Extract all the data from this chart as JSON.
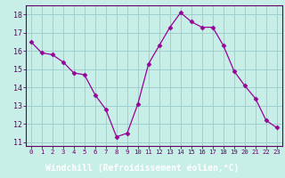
{
  "x": [
    0,
    1,
    2,
    3,
    4,
    5,
    6,
    7,
    8,
    9,
    10,
    11,
    12,
    13,
    14,
    15,
    16,
    17,
    18,
    19,
    20,
    21,
    22,
    23
  ],
  "y": [
    16.5,
    15.9,
    15.8,
    15.4,
    14.8,
    14.7,
    13.6,
    12.8,
    11.3,
    11.5,
    13.1,
    15.3,
    16.3,
    17.3,
    18.1,
    17.6,
    17.3,
    17.3,
    16.3,
    14.9,
    14.1,
    13.4,
    12.2,
    11.8
  ],
  "line_color": "#990099",
  "marker": "D",
  "marker_size": 2.5,
  "bg_color": "#c8eee8",
  "grid_color": "#99cccc",
  "xlabel": "Windchill (Refroidissement éolien,°C)",
  "xlabel_fontsize": 7.0,
  "xlabel_bg": "#7700aa",
  "xtick_labels": [
    "0",
    "1",
    "2",
    "3",
    "4",
    "5",
    "6",
    "7",
    "8",
    "9",
    "10",
    "11",
    "12",
    "13",
    "14",
    "15",
    "16",
    "17",
    "18",
    "19",
    "20",
    "21",
    "22",
    "23"
  ],
  "ytick_labels": [
    11,
    12,
    13,
    14,
    15,
    16,
    17,
    18
  ],
  "ylim": [
    10.8,
    18.5
  ],
  "xlim": [
    -0.5,
    23.5
  ],
  "tick_color": "#660066",
  "spine_color": "#660066"
}
